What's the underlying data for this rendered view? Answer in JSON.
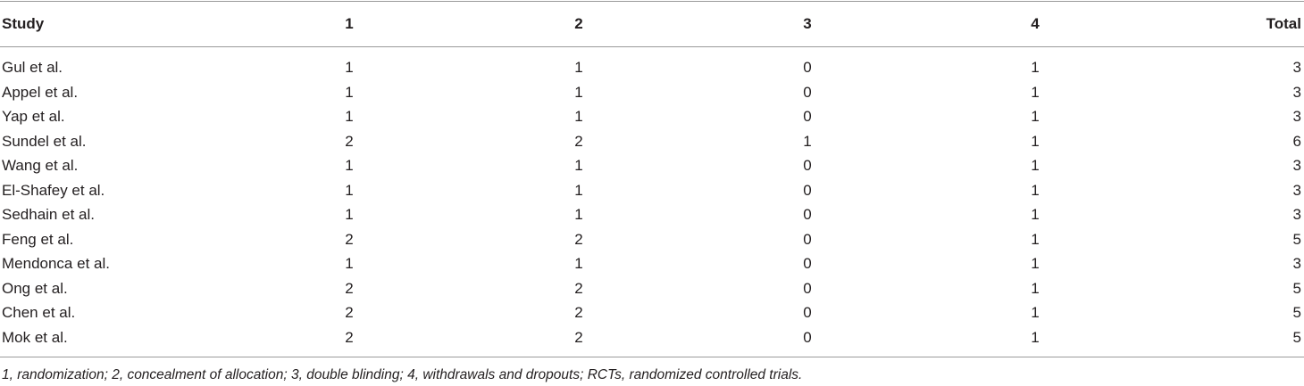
{
  "table": {
    "header": [
      "Study",
      "1",
      "2",
      "3",
      "4",
      "Total"
    ],
    "rows": [
      [
        "Gul et al.",
        1,
        1,
        0,
        1,
        3
      ],
      [
        "Appel et al.",
        1,
        1,
        0,
        1,
        3
      ],
      [
        "Yap et al.",
        1,
        1,
        0,
        1,
        3
      ],
      [
        "Sundel et al.",
        2,
        2,
        1,
        1,
        6
      ],
      [
        "Wang et al.",
        1,
        1,
        0,
        1,
        3
      ],
      [
        "El-Shafey et al.",
        1,
        1,
        0,
        1,
        3
      ],
      [
        "Sedhain et al.",
        1,
        1,
        0,
        1,
        3
      ],
      [
        "Feng et al.",
        2,
        2,
        0,
        1,
        5
      ],
      [
        "Mendonca et al.",
        1,
        1,
        0,
        1,
        3
      ],
      [
        "Ong et al.",
        2,
        2,
        0,
        1,
        5
      ],
      [
        "Chen et al.",
        2,
        2,
        0,
        1,
        5
      ],
      [
        "Mok et al.",
        2,
        2,
        0,
        1,
        5
      ]
    ],
    "footnote": "1, randomization; 2, concealment of allocation; 3, double blinding; 4, withdrawals and dropouts; RCTs, randomized controlled trials."
  }
}
